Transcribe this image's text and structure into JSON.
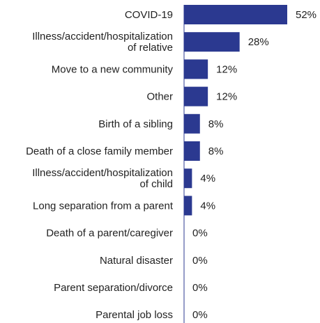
{
  "chart_data": {
    "type": "bar",
    "orientation": "horizontal",
    "bar_color": "#2b3990",
    "axis_color": "#2b3990",
    "value_suffix": "%",
    "xlim": [
      0,
      52
    ],
    "grid": false,
    "categories": [
      [
        "COVID-19"
      ],
      [
        "Illness/accident/hospitalization",
        "of relative"
      ],
      [
        "Move to a new community"
      ],
      [
        "Other"
      ],
      [
        "Birth of a sibling"
      ],
      [
        "Death of a close family member"
      ],
      [
        "Illness/accident/hospitalization",
        "of child"
      ],
      [
        "Long separation from a parent"
      ],
      [
        "Death of a parent/caregiver"
      ],
      [
        "Natural disaster"
      ],
      [
        "Parent separation/divorce"
      ],
      [
        "Parental job loss"
      ]
    ],
    "values": [
      52,
      28,
      12,
      12,
      8,
      8,
      4,
      4,
      0,
      0,
      0,
      0
    ],
    "value_labels": [
      "52%",
      "28%",
      "12%",
      "12%",
      "8%",
      "8%",
      "4%",
      "4%",
      "0%",
      "0%",
      "0%",
      "0%"
    ]
  }
}
